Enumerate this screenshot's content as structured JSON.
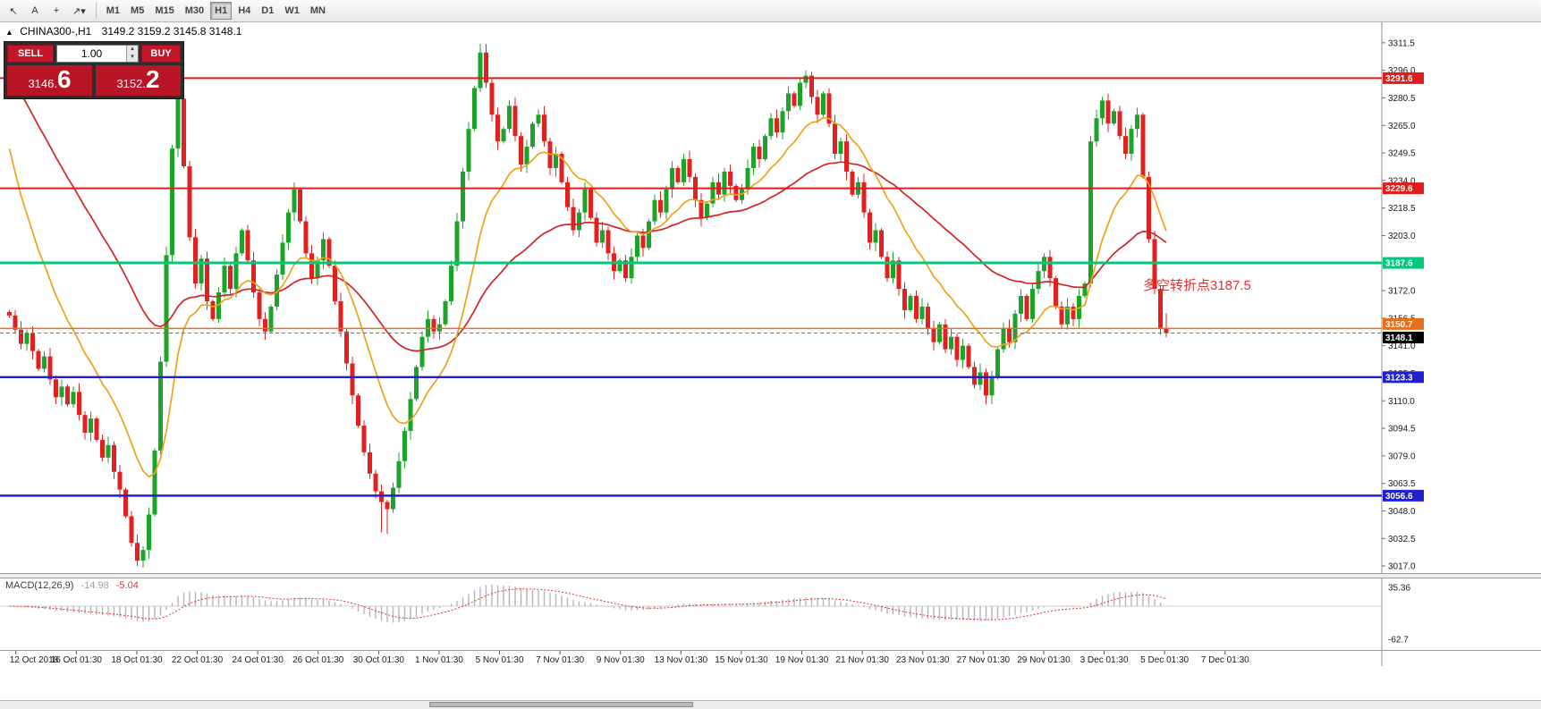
{
  "colors": {
    "up": "#1ca32a",
    "down": "#e32020",
    "ma_fast": "#f0a11a",
    "ma_slow": "#d02525",
    "macd_bar": "#b6b6b6",
    "macd_signal": "#e03131",
    "current_price_bg": "#000000"
  },
  "toolbar": {
    "icons": [
      {
        "name": "cursor-icon",
        "glyph": "↖"
      },
      {
        "name": "text-label-icon",
        "glyph": "A"
      },
      {
        "name": "crosshair-icon",
        "glyph": "+"
      },
      {
        "name": "shapes-dropdown-icon",
        "glyph": "↗▾"
      }
    ],
    "timeframes": [
      "M1",
      "M5",
      "M15",
      "M30",
      "H1",
      "H4",
      "D1",
      "W1",
      "MN"
    ],
    "active_timeframe": "H1"
  },
  "symbol_info": {
    "symbol": "CHINA300-,H1",
    "ohlc": "3149.2 3159.2 3145.8 3148.1"
  },
  "trade_panel": {
    "sell_label": "SELL",
    "buy_label": "BUY",
    "volume": "1.00",
    "sell_price": "3146.",
    "sell_price_big": "6",
    "buy_price": "3152.",
    "buy_price_big": "2"
  },
  "annotation": {
    "text": "多空转折点3187.5"
  },
  "macd": {
    "label": "MACD(12,26,9)",
    "value1": "-14.98",
    "value2": "-5.04",
    "axis_top": "35.36",
    "axis_bottom": "-62.7"
  },
  "price_axis": {
    "labels": [
      "3311.5",
      "3296.0",
      "3280.5",
      "3265.0",
      "3249.5",
      "3234.0",
      "3218.5",
      "3203.0",
      "3187.5",
      "3172.0",
      "3156.5",
      "3141.0",
      "3125.5",
      "3110.0",
      "3094.5",
      "3079.0",
      "3063.5",
      "3048.0",
      "3032.5",
      "3017.0"
    ]
  },
  "time_axis": {
    "labels": [
      "12 Oct 2018",
      "16 Oct 01:30",
      "18 Oct 01:30",
      "22 Oct 01:30",
      "24 Oct 01:30",
      "26 Oct 01:30",
      "30 Oct 01:30",
      "1 Nov 01:30",
      "5 Nov 01:30",
      "7 Nov 01:30",
      "9 Nov 01:30",
      "13 Nov 01:30",
      "15 Nov 01:30",
      "19 Nov 01:30",
      "21 Nov 01:30",
      "23 Nov 01:30",
      "27 Nov 01:30",
      "29 Nov 01:30",
      "3 Dec 01:30",
      "5 Dec 01:30",
      "7 Dec 01:30"
    ]
  },
  "chart_data": {
    "type": "candlestick",
    "symbol": "CHINA300-",
    "timeframe": "H1",
    "price_range": [
      3013,
      3323
    ],
    "first_open": 3160,
    "closes": [
      3158,
      3150,
      3142,
      3148,
      3138,
      3128,
      3135,
      3122,
      3112,
      3118,
      3108,
      3115,
      3102,
      3092,
      3100,
      3088,
      3078,
      3085,
      3070,
      3060,
      3045,
      3030,
      3020,
      3026,
      3046,
      3082,
      3132,
      3192,
      3252,
      3280,
      3242,
      3202,
      3176,
      3190,
      3166,
      3156,
      3171,
      3186,
      3173,
      3193,
      3206,
      3189,
      3171,
      3156,
      3149,
      3163,
      3181,
      3199,
      3216,
      3229,
      3211,
      3193,
      3179,
      3189,
      3201,
      3186,
      3166,
      3149,
      3131,
      3113,
      3096,
      3081,
      3069,
      3059,
      3053,
      3049,
      3061,
      3076,
      3093,
      3111,
      3129,
      3146,
      3156,
      3149,
      3153,
      3166,
      3186,
      3211,
      3239,
      3263,
      3286,
      3306,
      3289,
      3271,
      3256,
      3263,
      3276,
      3259,
      3243,
      3253,
      3266,
      3271,
      3256,
      3241,
      3249,
      3233,
      3219,
      3206,
      3216,
      3229,
      3213,
      3199,
      3206,
      3193,
      3183,
      3189,
      3179,
      3191,
      3203,
      3196,
      3211,
      3223,
      3216,
      3229,
      3241,
      3233,
      3246,
      3236,
      3223,
      3213,
      3221,
      3233,
      3226,
      3239,
      3231,
      3223,
      3229,
      3241,
      3253,
      3246,
      3259,
      3269,
      3261,
      3273,
      3283,
      3276,
      3289,
      3293,
      3281,
      3271,
      3283,
      3266,
      3249,
      3256,
      3239,
      3226,
      3233,
      3216,
      3199,
      3206,
      3191,
      3179,
      3189,
      3173,
      3161,
      3169,
      3156,
      3163,
      3151,
      3143,
      3153,
      3139,
      3146,
      3133,
      3141,
      3129,
      3119,
      3126,
      3113,
      3123,
      3139,
      3151,
      3143,
      3159,
      3169,
      3156,
      3173,
      3183,
      3191,
      3179,
      3163,
      3153,
      3163,
      3156,
      3169,
      3176,
      3256,
      3269,
      3279,
      3266,
      3273,
      3259,
      3249,
      3263,
      3271,
      3236,
      3201,
      3173,
      3151,
      3148.1
    ],
    "wick_overrides": {
      "22": {
        "low": 3017
      },
      "29": {
        "high": 3286
      },
      "64": {
        "low": 3036
      },
      "65": {
        "low": 3035
      },
      "81": {
        "high": 3311
      },
      "137": {
        "high": 3296
      },
      "168": {
        "low": 3108
      },
      "199": {
        "high": 3159.2,
        "low": 3145.8
      }
    },
    "ma_fast_period": 14,
    "ma_slow_period": 45,
    "pre_history": {
      "start": 3400,
      "end": 3250,
      "count": 60
    },
    "hlines": [
      {
        "price": 3291.6,
        "tag": "3291.6",
        "color": "#e21b1b",
        "width": 2,
        "tag_dy": 0
      },
      {
        "price": 3229.6,
        "tag": "3229.6",
        "color": "#e21b1b",
        "width": 2,
        "tag_dy": 0
      },
      {
        "price": 3187.6,
        "tag": "3187.6",
        "color": "#00c97c",
        "width": 3,
        "tag_dy": 0
      },
      {
        "price": 3150.7,
        "tag": "3150.7",
        "color": "#e8701a",
        "width": 1.4,
        "tag_dy": -5
      },
      {
        "price": 3123.3,
        "tag": "3123.3",
        "color": "#2020d0",
        "width": 2.4,
        "tag_dy": 0
      },
      {
        "price": 3056.6,
        "tag": "3056.6",
        "color": "#2020d0",
        "width": 2.4,
        "tag_dy": 0
      }
    ],
    "current_price": 3148.1,
    "current_price_label": "3148.1",
    "macd_params": {
      "fast": 12,
      "slow": 26,
      "signal": 9
    }
  }
}
